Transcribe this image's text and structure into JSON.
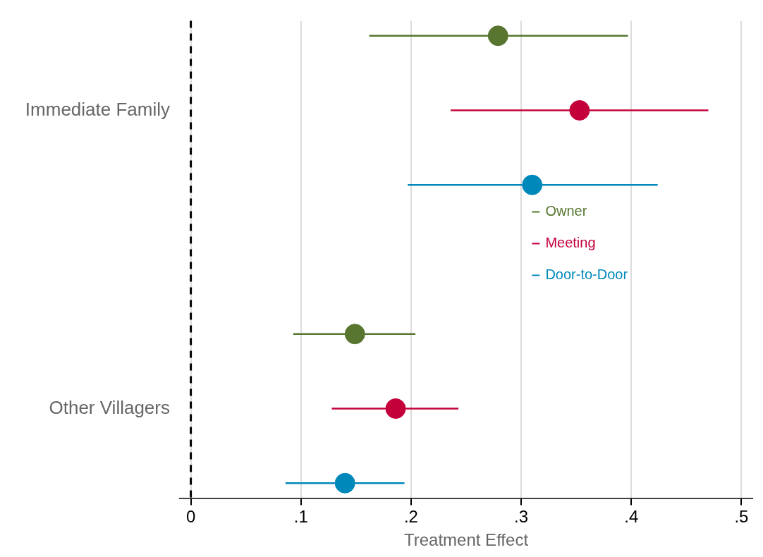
{
  "chart_data": {
    "type": "scatter",
    "orientation": "horizontal",
    "categories": [
      "Immediate Family",
      "Other Villagers"
    ],
    "xlabel": "Treatment Effect",
    "xlim": [
      -0.01,
      0.51
    ],
    "xticks": [
      0,
      {
        "value": 0.1,
        "label": ".1"
      },
      {
        "value": 0.2,
        "label": ".2"
      },
      {
        "value": 0.3,
        "label": ".3"
      },
      {
        "value": 0.4,
        "label": ".4"
      },
      {
        "value": 0.5,
        "label": ".5"
      }
    ],
    "grid": "x",
    "legend": "right",
    "marker": "circle",
    "ref_lines": [
      {
        "axis": "x",
        "value": 0,
        "line_style": "dashed",
        "color": "#000000"
      }
    ],
    "series": [
      {
        "name": "Owner",
        "color": "#587630",
        "values": [
          0.279,
          0.149
        ],
        "errors": [
          [
            0.162,
            0.397
          ],
          [
            0.093,
            0.204
          ]
        ]
      },
      {
        "name": "Meeting",
        "color": "#c4003a",
        "values": [
          0.353,
          0.186
        ],
        "errors": [
          [
            0.236,
            0.47
          ],
          [
            0.128,
            0.243
          ]
        ]
      },
      {
        "name": "Door-to-Door",
        "color": "#0088bb",
        "values": [
          0.31,
          0.14
        ],
        "errors": [
          [
            0.197,
            0.424
          ],
          [
            0.086,
            0.194
          ]
        ]
      }
    ]
  }
}
